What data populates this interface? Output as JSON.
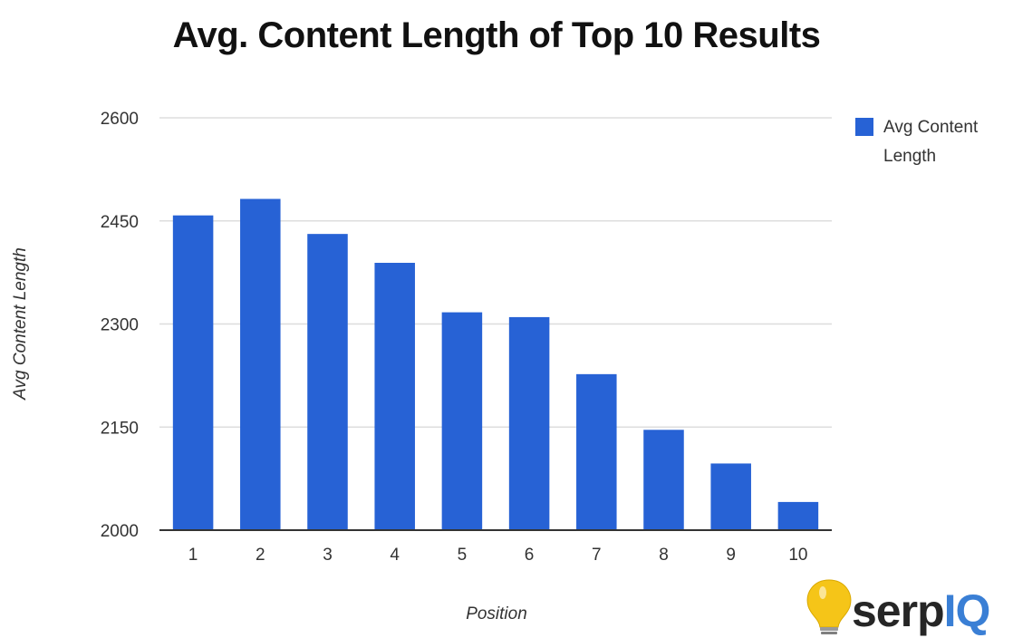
{
  "chart_data": {
    "type": "bar",
    "title": "Avg. Content Length of Top 10 Results",
    "xlabel": "Position",
    "ylabel": "Avg Content Length",
    "categories": [
      "1",
      "2",
      "3",
      "4",
      "5",
      "6",
      "7",
      "8",
      "9",
      "10"
    ],
    "series": [
      {
        "name": "Avg Content Length",
        "values": [
          2458,
          2482,
          2431,
          2389,
          2317,
          2310,
          2227,
          2146,
          2097,
          2041
        ],
        "color": "#2762d5"
      }
    ],
    "ylim": [
      2000,
      2600
    ],
    "yticks": [
      "2000",
      "2150",
      "2300",
      "2450",
      "2600"
    ],
    "grid": true,
    "legend": {
      "position": "right",
      "label_lines": [
        "Avg Content",
        "Length"
      ]
    },
    "gridline_color": "#dddddd",
    "baseline_color": "#333333"
  },
  "branding": {
    "logo_text_dark": "serp",
    "logo_text_accent": "IQ",
    "dark_color": "#262626",
    "accent_color": "#3a7fd5",
    "bulb_color": "#f5c518",
    "icon": "lightbulb-icon"
  }
}
